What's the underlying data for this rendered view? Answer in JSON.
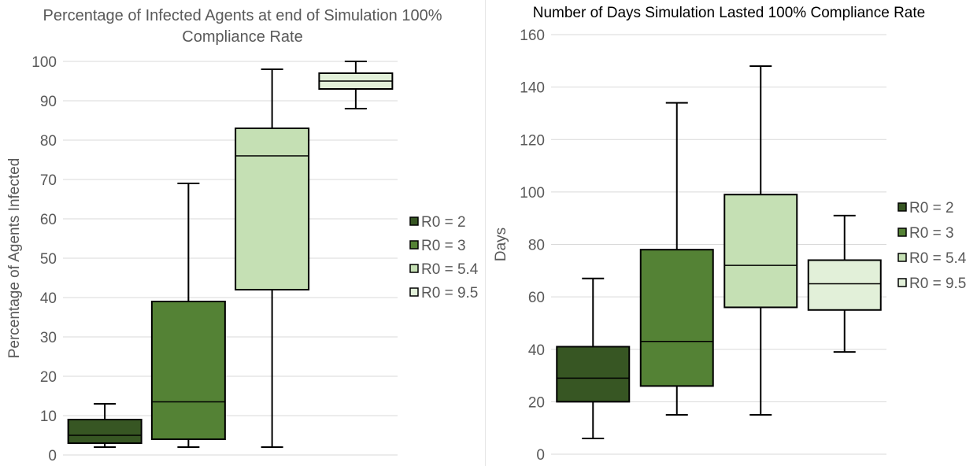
{
  "chart_data": [
    {
      "type": "box",
      "title_lines": [
        "Percentage of Infected Agents at end of Simulation 100%",
        "Compliance Rate"
      ],
      "ylabel": "Percentage of Agents Infected",
      "xlabel": "",
      "ylim": [
        0,
        100
      ],
      "yticks": [
        "0",
        "10",
        "20",
        "30",
        "40",
        "50",
        "60",
        "70",
        "80",
        "90",
        "100"
      ],
      "grid": true,
      "legend_position": "right",
      "series": [
        {
          "name": "R0 = 2",
          "color": "#375623",
          "min": 2,
          "q1": 3,
          "median": 5,
          "q3": 9,
          "max": 13
        },
        {
          "name": "R0 = 3",
          "color": "#548235",
          "min": 2,
          "q1": 4,
          "median": 13.5,
          "q3": 39,
          "max": 69
        },
        {
          "name": "R0 = 5.4",
          "color": "#c5e0b4",
          "min": 2,
          "q1": 42,
          "median": 76,
          "q3": 83,
          "max": 98
        },
        {
          "name": "R0 = 9.5",
          "color": "#e2f0d9",
          "min": 88,
          "q1": 93,
          "median": 95,
          "q3": 97,
          "max": 100
        }
      ]
    },
    {
      "type": "box",
      "title_lines": [
        "Number of Days Simulation Lasted 100% Compliance Rate"
      ],
      "ylabel": "Days",
      "xlabel": "",
      "ylim": [
        0,
        160
      ],
      "yticks": [
        "0",
        "20",
        "40",
        "60",
        "80",
        "100",
        "120",
        "140",
        "160"
      ],
      "grid": true,
      "legend_position": "right",
      "series": [
        {
          "name": "R0 = 2",
          "color": "#375623",
          "min": 6,
          "q1": 20,
          "median": 29,
          "q3": 41,
          "max": 67
        },
        {
          "name": "R0 = 3",
          "color": "#548235",
          "min": 15,
          "q1": 26,
          "median": 43,
          "q3": 78,
          "max": 134
        },
        {
          "name": "R0 = 5.4",
          "color": "#c5e0b4",
          "min": 15,
          "q1": 56,
          "median": 72,
          "q3": 99,
          "max": 148
        },
        {
          "name": "R0 = 9.5",
          "color": "#e2f0d9",
          "min": 39,
          "q1": 55,
          "median": 65,
          "q3": 74,
          "max": 91
        }
      ]
    }
  ]
}
